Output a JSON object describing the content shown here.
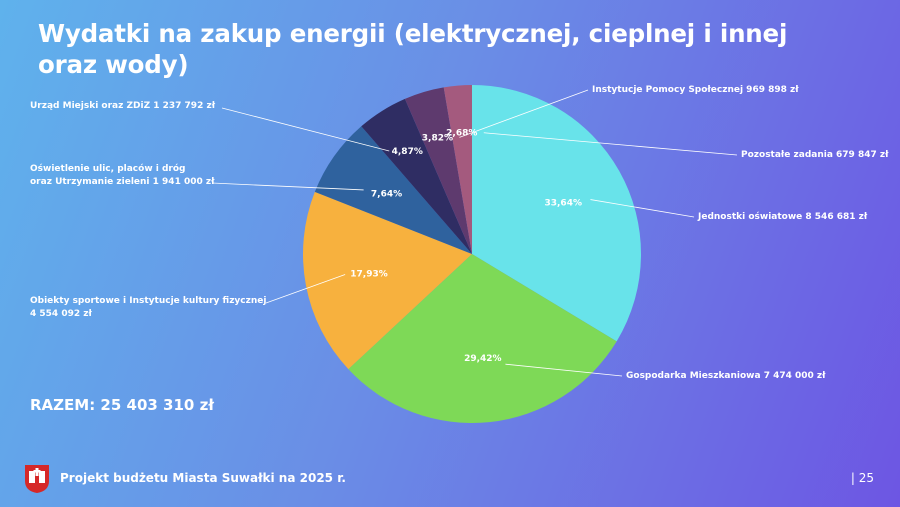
{
  "title": "Wydatki na zakup energii (elektrycznej, cieplnej i innej oraz wody)",
  "total": "RAZEM: 25 403 310 zł",
  "footer": {
    "text": "Projekt budżetu Miasta Suwałki na 2025 r.",
    "page": "| 25"
  },
  "colors": {
    "crest_red": "#d62828",
    "crest_white": "#ffffff"
  },
  "chart_data": {
    "type": "pie",
    "total": 25403310,
    "slices": [
      {
        "label_lines": [
          "Jednostki oświatowe 8 546 681 zł"
        ],
        "value": 8546681,
        "pct": "33,64%",
        "color": "#68e3ea"
      },
      {
        "label_lines": [
          "Gospodarka Mieszkaniowa 7 474 000 zł"
        ],
        "value": 7474000,
        "pct": "29,42%",
        "color": "#7ed957"
      },
      {
        "label_lines": [
          "Obiekty sportowe i Instytucje kultury fizycznej",
          "4 554 092 zł"
        ],
        "value": 4554092,
        "pct": "17,93%",
        "color": "#f7b13e"
      },
      {
        "label_lines": [
          "Oświetlenie ulic, placów i dróg",
          "oraz Utrzymanie zieleni 1 941 000 zł"
        ],
        "value": 1941000,
        "pct": "7,64%",
        "color": "#2f629e"
      },
      {
        "label_lines": [
          "Urząd Miejski oraz ZDiZ 1 237 792 zł"
        ],
        "value": 1237792,
        "pct": "4,87%",
        "color": "#2f2d63"
      },
      {
        "label_lines": [
          "Instytucje Pomocy Społecznej 969 898 zł"
        ],
        "value": 969898,
        "pct": "3,82%",
        "color": "#5e3a6e"
      },
      {
        "label_lines": [
          "Pozostałe zadania 679 847 zł"
        ],
        "value": 679847,
        "pct": "2,68%",
        "color": "#a45a7e"
      }
    ]
  }
}
